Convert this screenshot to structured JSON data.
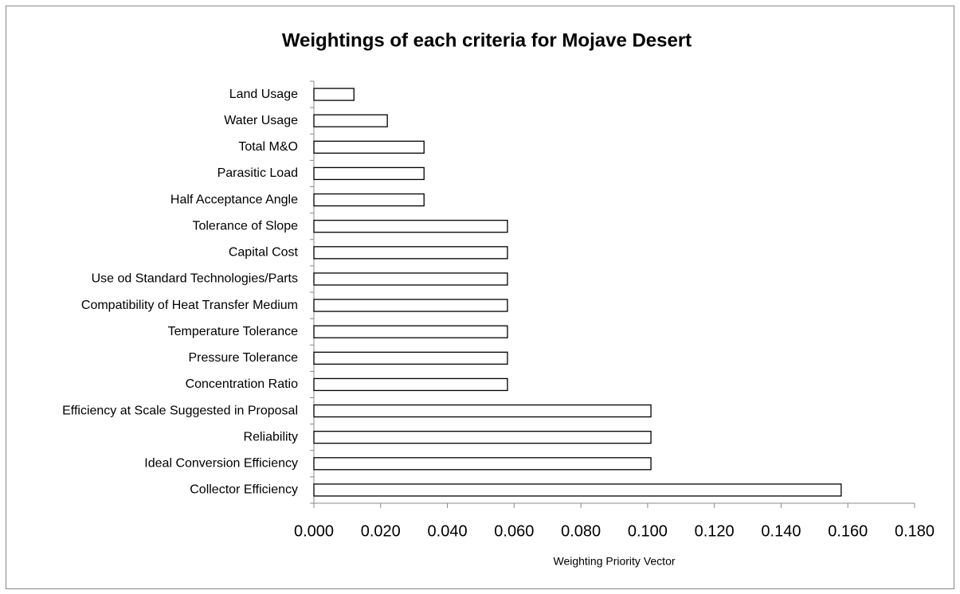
{
  "chart_data": {
    "type": "bar",
    "orientation": "horizontal",
    "title": "Weightings of each criteria for Mojave Desert",
    "x_label": "Weighting Priority Vector",
    "categories": [
      "Land Usage",
      "Water Usage",
      "Total M&O",
      "Parasitic Load",
      "Half Acceptance Angle",
      "Tolerance of Slope",
      "Capital Cost",
      "Use od Standard Technologies/Parts",
      "Compatibility of Heat Transfer Medium",
      "Temperature Tolerance",
      "Pressure Tolerance",
      "Concentration Ratio",
      "Efficiency at Scale Suggested in Proposal",
      "Reliability",
      "Ideal Conversion Efficiency",
      "Collector Efficiency"
    ],
    "values": [
      0.012,
      0.022,
      0.033,
      0.033,
      0.033,
      0.058,
      0.058,
      0.058,
      0.058,
      0.058,
      0.058,
      0.058,
      0.101,
      0.101,
      0.101,
      0.158
    ],
    "color": "#ffffff",
    "xlim": [
      0,
      0.18
    ],
    "xticks": [
      {
        "value": 0,
        "label": "0.000"
      },
      {
        "value": 0.02,
        "label": "0.020"
      },
      {
        "value": 0.04,
        "label": "0.040"
      },
      {
        "value": 0.06,
        "label": "0.060"
      },
      {
        "value": 0.08,
        "label": "0.080"
      },
      {
        "value": 0.1,
        "label": "0.100"
      },
      {
        "value": 0.12,
        "label": "0.120"
      },
      {
        "value": 0.14,
        "label": "0.140"
      },
      {
        "value": 0.16,
        "label": "0.160"
      },
      {
        "value": 0.18,
        "label": "0.180"
      }
    ],
    "grid": false
  }
}
